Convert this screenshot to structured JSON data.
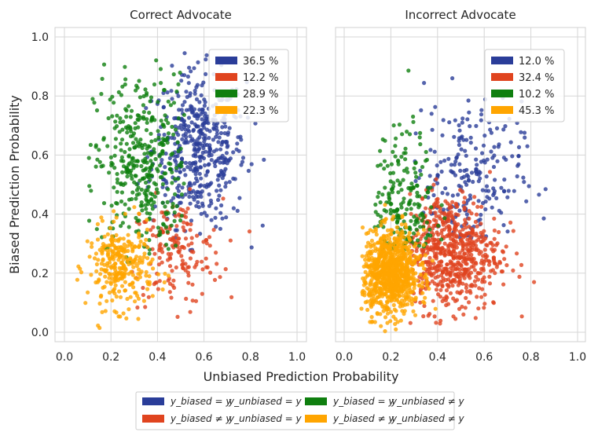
{
  "chart_data": {
    "type": "scatter",
    "xlabel": "Unbiased Prediction Probability",
    "ylabel": "Biased Prediction Probability",
    "xlim": [
      0,
      1
    ],
    "ylim": [
      0,
      1
    ],
    "xticks": [
      "0.0",
      "0.2",
      "0.4",
      "0.6",
      "0.8",
      "1.0"
    ],
    "yticks": [
      "0.0",
      "0.2",
      "0.4",
      "0.6",
      "0.8",
      "1.0"
    ],
    "grid": true,
    "categories": [
      {
        "key": "both_correct",
        "color": "#2a3d99",
        "biased": "y_biased = y",
        "unbiased": "y_unbiased = y"
      },
      {
        "key": "biased_wrong",
        "color": "#e0441f",
        "biased": "y_biased ≠ y",
        "unbiased": "y_unbiased = y"
      },
      {
        "key": "unbiased_wrong",
        "color": "#0f7f0f",
        "biased": "y_biased = y",
        "unbiased": "y_unbiased ≠ y"
      },
      {
        "key": "both_wrong",
        "color": "#ffa500",
        "biased": "y_biased ≠ y",
        "unbiased": "y_unbiased ≠ y"
      }
    ],
    "panels": [
      {
        "title": "Correct Advocate",
        "legend_position": "top-right",
        "percentages": [
          "36.5 %",
          "12.2 %",
          "28.9 %",
          "22.3 %"
        ],
        "clusters": [
          {
            "cat": 0,
            "n": 480,
            "cx": 0.58,
            "cy": 0.62,
            "sx": 0.1,
            "sy": 0.13,
            "xmin": 0.3,
            "xmax": 0.92,
            "ymin": 0.25,
            "ymax": 0.99
          },
          {
            "cat": 1,
            "n": 160,
            "cx": 0.48,
            "cy": 0.27,
            "sx": 0.1,
            "sy": 0.09,
            "xmin": 0.28,
            "xmax": 0.85,
            "ymin": 0.02,
            "ymax": 0.5
          },
          {
            "cat": 2,
            "n": 380,
            "cx": 0.33,
            "cy": 0.57,
            "sx": 0.1,
            "sy": 0.15,
            "xmin": 0.1,
            "xmax": 0.52,
            "ymin": 0.22,
            "ymax": 0.97
          },
          {
            "cat": 3,
            "n": 290,
            "cx": 0.24,
            "cy": 0.22,
            "sx": 0.07,
            "sy": 0.07,
            "xmin": 0.05,
            "xmax": 0.52,
            "ymin": 0.0,
            "ymax": 0.5
          }
        ]
      },
      {
        "title": "Incorrect Advocate",
        "legend_position": "top-right",
        "percentages": [
          "12.0 %",
          "32.4 %",
          "10.2 %",
          "45.3 %"
        ],
        "clusters": [
          {
            "cat": 0,
            "n": 230,
            "cx": 0.52,
            "cy": 0.52,
            "sx": 0.12,
            "sy": 0.13,
            "xmin": 0.3,
            "xmax": 0.92,
            "ymin": 0.3,
            "ymax": 0.98
          },
          {
            "cat": 1,
            "n": 620,
            "cx": 0.45,
            "cy": 0.27,
            "sx": 0.11,
            "sy": 0.1,
            "xmin": 0.28,
            "xmax": 0.85,
            "ymin": 0.02,
            "ymax": 0.55
          },
          {
            "cat": 2,
            "n": 200,
            "cx": 0.25,
            "cy": 0.42,
            "sx": 0.07,
            "sy": 0.13,
            "xmin": 0.13,
            "xmax": 0.45,
            "ymin": 0.28,
            "ymax": 0.96
          },
          {
            "cat": 3,
            "n": 900,
            "cx": 0.2,
            "cy": 0.2,
            "sx": 0.06,
            "sy": 0.07,
            "xmin": 0.07,
            "xmax": 0.45,
            "ymin": 0.0,
            "ymax": 0.47
          }
        ]
      }
    ]
  }
}
